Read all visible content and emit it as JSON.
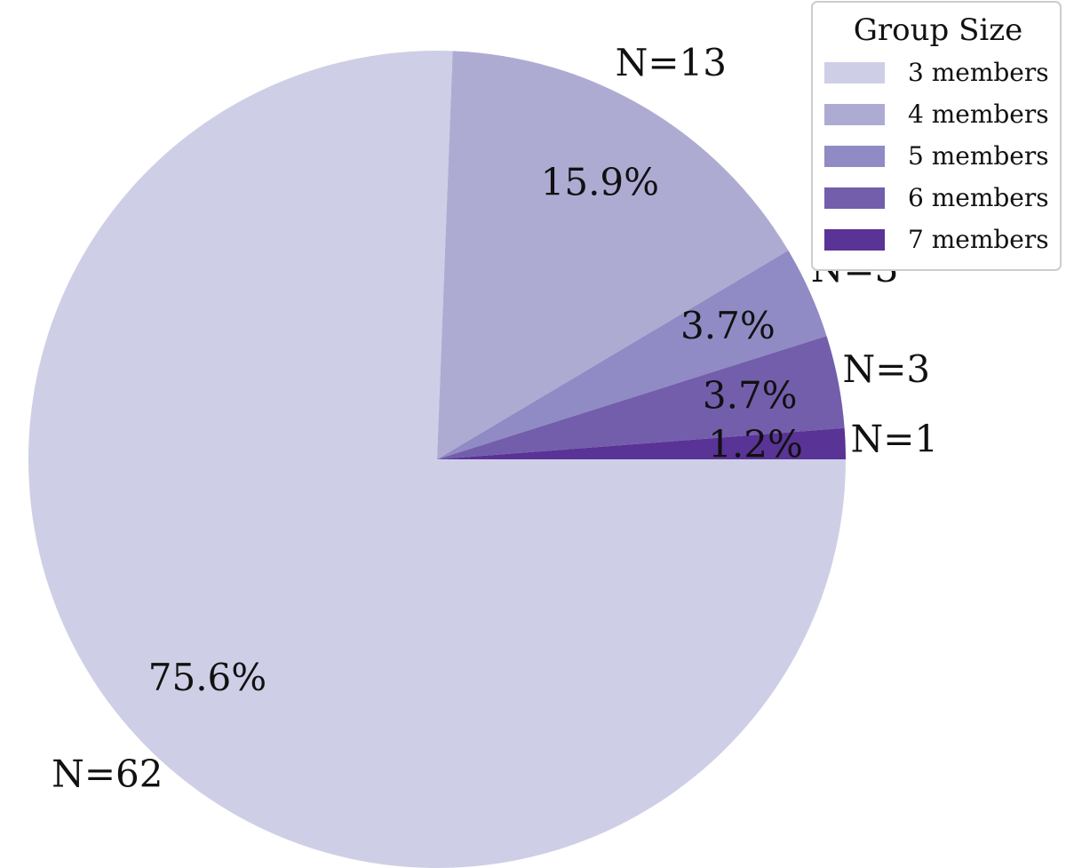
{
  "chart_data": {
    "type": "pie",
    "legend": {
      "title": "Group Size",
      "placement": "top-right"
    },
    "slices": [
      {
        "label": "3 members",
        "value": 62,
        "percent_label": "75.6%",
        "count_label": "N=62",
        "color": "#cecfe6"
      },
      {
        "label": "4 members",
        "value": 13,
        "percent_label": "15.9%",
        "count_label": "N=13",
        "color": "#aeabd3"
      },
      {
        "label": "5 members",
        "value": 3,
        "percent_label": "3.7%",
        "count_label": "N=3",
        "color": "#908bc4"
      },
      {
        "label": "6 members",
        "value": 3,
        "percent_label": "3.7%",
        "count_label": "N=3",
        "color": "#735eac"
      },
      {
        "label": "7 members",
        "value": 1,
        "percent_label": "1.2%",
        "count_label": "N=1",
        "color": "#5a3396"
      }
    ],
    "start_angle_deg": 0,
    "direction": "clockwise"
  }
}
